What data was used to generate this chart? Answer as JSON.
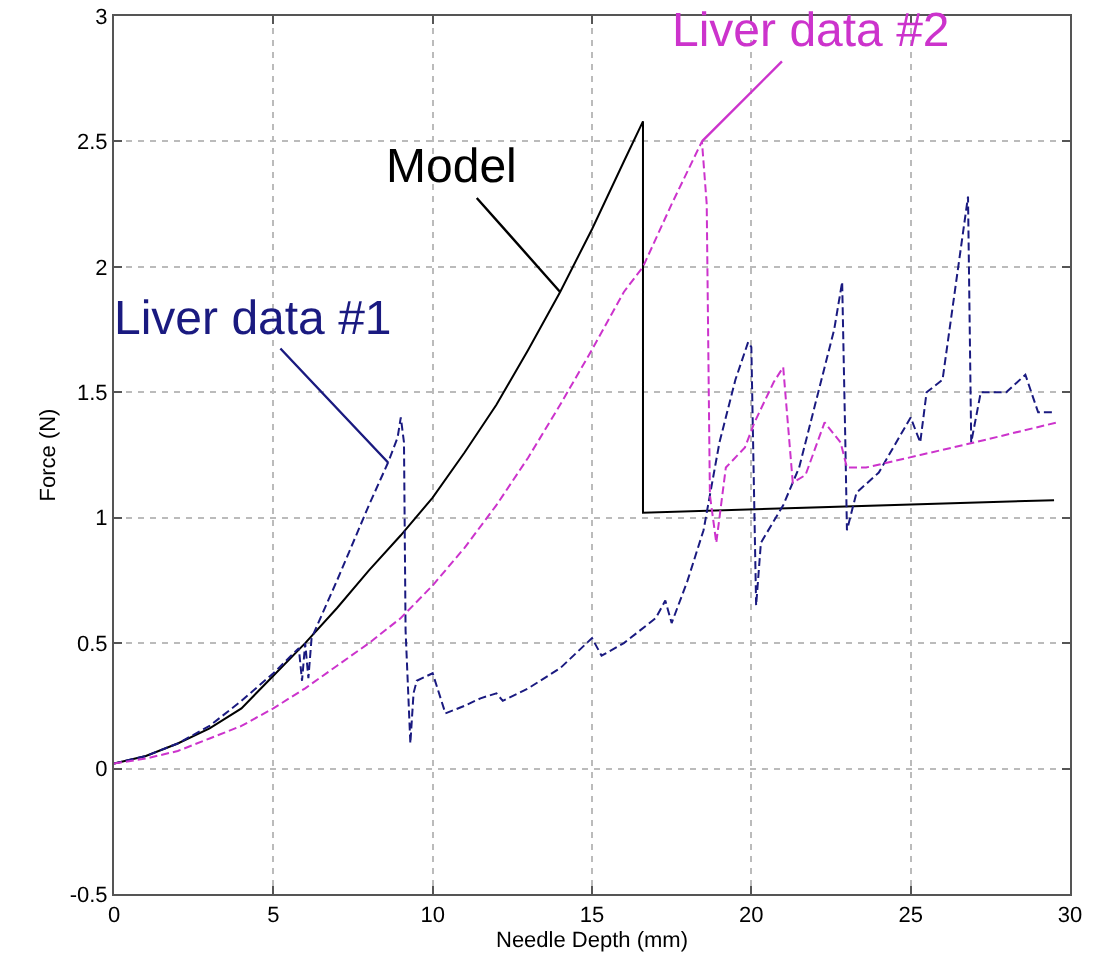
{
  "chart_data": {
    "type": "line",
    "xlabel": "Needle Depth (mm)",
    "ylabel": "Force (N)",
    "xlim": [
      0,
      30
    ],
    "xticks": [
      0,
      5,
      10,
      15,
      20,
      25,
      30
    ],
    "ylim": [
      -0.5,
      3
    ],
    "yticks": [
      -0.5,
      0,
      0.5,
      1,
      1.5,
      2,
      2.5,
      3
    ],
    "grid": true,
    "legend": false,
    "marker": "none",
    "series": [
      {
        "name": "Model",
        "color": "#000000",
        "line_style": "solid",
        "x": [
          0,
          1,
          2,
          3,
          4,
          5,
          6,
          7,
          8,
          9,
          10,
          11,
          12,
          13,
          14,
          15,
          16,
          16.6,
          16.6,
          29.5
        ],
        "values": [
          0.02,
          0.05,
          0.1,
          0.16,
          0.24,
          0.37,
          0.5,
          0.64,
          0.79,
          0.93,
          1.08,
          1.26,
          1.45,
          1.67,
          1.9,
          2.15,
          2.42,
          2.58,
          1.02,
          1.07
        ]
      },
      {
        "name": "Liver data #1",
        "color": "#1a1a80",
        "line_style": "dashed",
        "x": [
          0,
          1,
          2,
          3,
          4,
          5,
          5.8,
          5.9,
          6,
          6.1,
          6.2,
          7,
          8,
          8.6,
          8.9,
          9.0,
          9.1,
          9.15,
          9.3,
          9.4,
          9.5,
          10,
          10.4,
          11,
          11.5,
          12,
          12.2,
          13,
          14,
          15,
          15.3,
          16,
          17,
          17.3,
          17.5,
          18,
          18.5,
          19,
          19.5,
          19.9,
          20.0,
          20.15,
          20.3,
          21,
          21.5,
          22,
          22.6,
          22.85,
          22.95,
          23.0,
          23.3,
          24,
          25,
          25.3,
          25.5,
          26,
          26.8,
          26.9,
          27.2,
          28,
          28.6,
          29,
          29.5
        ],
        "values": [
          0.02,
          0.05,
          0.1,
          0.17,
          0.27,
          0.38,
          0.48,
          0.35,
          0.5,
          0.36,
          0.52,
          0.75,
          1.05,
          1.22,
          1.32,
          1.4,
          1.3,
          0.55,
          0.1,
          0.3,
          0.35,
          0.38,
          0.22,
          0.25,
          0.28,
          0.3,
          0.27,
          0.32,
          0.4,
          0.52,
          0.45,
          0.5,
          0.6,
          0.67,
          0.58,
          0.75,
          0.95,
          1.3,
          1.55,
          1.7,
          1.68,
          0.65,
          0.9,
          1.05,
          1.2,
          1.45,
          1.75,
          1.94,
          1.3,
          0.95,
          1.1,
          1.18,
          1.4,
          1.3,
          1.5,
          1.55,
          2.28,
          1.3,
          1.5,
          1.5,
          1.57,
          1.42,
          1.42
        ]
      },
      {
        "name": "Liver data #2",
        "color": "#cc33cc",
        "line_style": "dashed",
        "x": [
          0,
          1,
          2,
          3,
          4,
          5,
          6,
          7,
          8,
          9,
          10,
          11,
          12,
          13,
          14,
          15,
          16,
          16.6,
          17.5,
          18.45,
          18.6,
          18.7,
          18.9,
          19.2,
          19.8,
          20.1,
          20.7,
          21.0,
          21.3,
          21.7,
          22.3,
          22.8,
          23.0,
          23.6,
          25.3,
          27.0,
          29.6
        ],
        "values": [
          0.02,
          0.04,
          0.07,
          0.12,
          0.17,
          0.24,
          0.32,
          0.41,
          0.5,
          0.6,
          0.73,
          0.88,
          1.05,
          1.24,
          1.45,
          1.67,
          1.9,
          2.0,
          2.25,
          2.5,
          2.25,
          1.09,
          0.9,
          1.2,
          1.28,
          1.38,
          1.54,
          1.6,
          1.14,
          1.17,
          1.38,
          1.3,
          1.2,
          1.2,
          1.25,
          1.3,
          1.38
        ]
      }
    ]
  }
}
